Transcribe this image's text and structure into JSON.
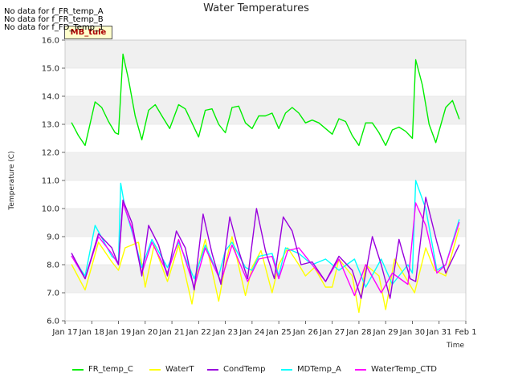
{
  "chart_data": {
    "type": "line",
    "title": "Water Temperatures",
    "xlabel": "Time",
    "ylabel": "Temperature (C)",
    "ylim": [
      6.0,
      16.0
    ],
    "yticks": [
      "6.0",
      "7.0",
      "8.0",
      "9.0",
      "10.0",
      "11.0",
      "12.0",
      "13.0",
      "14.0",
      "15.0",
      "16.0"
    ],
    "xlim": [
      "Jan 17",
      "Feb 1"
    ],
    "xticks": [
      "Jan 17",
      "Jan 18",
      "Jan 19",
      "Jan 20",
      "Jan 21",
      "Jan 22",
      "Jan 23",
      "Jan 24",
      "Jan 25",
      "Jan 26",
      "Jan 27",
      "Jan 28",
      "Jan 29",
      "Jan 30",
      "Jan 31",
      "Feb 1"
    ],
    "grid": "horizontal bands",
    "legend_position": "bottom",
    "series": [
      {
        "name": "FR_temp_C",
        "color": "#00ee00",
        "x": [
          "2025-01-17T06:00",
          "2025-01-17T12:00",
          "2025-01-17T18:00",
          "2025-01-18T03:00",
          "2025-01-18T09:00",
          "2025-01-18T15:00",
          "2025-01-18T21:00",
          "2025-01-19T00:00",
          "2025-01-19T04:00",
          "2025-01-19T09:00",
          "2025-01-19T15:00",
          "2025-01-19T21:00",
          "2025-01-20T03:00",
          "2025-01-20T09:00",
          "2025-01-20T15:00",
          "2025-01-20T22:00",
          "2025-01-21T06:00",
          "2025-01-21T12:00",
          "2025-01-21T18:00",
          "2025-01-22T00:00",
          "2025-01-22T06:00",
          "2025-01-22T12:00",
          "2025-01-22T18:00",
          "2025-01-23T00:00",
          "2025-01-23T06:00",
          "2025-01-23T12:00",
          "2025-01-23T18:00",
          "2025-01-24T00:00",
          "2025-01-24T06:00",
          "2025-01-24T12:00",
          "2025-01-24T18:00",
          "2025-01-25T00:00",
          "2025-01-25T06:00",
          "2025-01-25T12:00",
          "2025-01-25T18:00",
          "2025-01-26T00:00",
          "2025-01-26T06:00",
          "2025-01-26T12:00",
          "2025-01-26T18:00",
          "2025-01-27T00:00",
          "2025-01-27T06:00",
          "2025-01-27T12:00",
          "2025-01-27T18:00",
          "2025-01-28T00:00",
          "2025-01-28T06:00",
          "2025-01-28T12:00",
          "2025-01-28T18:00",
          "2025-01-29T00:00",
          "2025-01-29T06:00",
          "2025-01-29T12:00",
          "2025-01-29T18:00",
          "2025-01-30T00:00",
          "2025-01-30T03:00",
          "2025-01-30T09:00",
          "2025-01-30T15:00",
          "2025-01-30T21:00",
          "2025-01-31T06:00",
          "2025-01-31T12:00",
          "2025-01-31T18:00"
        ],
        "values": [
          13.05,
          12.6,
          12.25,
          13.8,
          13.6,
          13.1,
          12.7,
          12.65,
          15.5,
          14.6,
          13.3,
          12.45,
          13.5,
          13.7,
          13.3,
          12.85,
          13.7,
          13.55,
          13.05,
          12.55,
          13.5,
          13.55,
          13.0,
          12.7,
          13.6,
          13.65,
          13.05,
          12.85,
          13.3,
          13.3,
          13.4,
          12.85,
          13.4,
          13.6,
          13.4,
          13.05,
          13.15,
          13.05,
          12.85,
          12.65,
          13.2,
          13.1,
          12.6,
          12.25,
          13.05,
          13.05,
          12.7,
          12.25,
          12.8,
          12.9,
          12.75,
          12.5,
          15.3,
          14.4,
          13.0,
          12.35,
          13.6,
          13.85,
          13.2
        ],
        "note": "values shown as displayed"
      },
      {
        "name": "WaterT",
        "color": "#ffff00",
        "x": [
          "2025-01-17T06:00",
          "2025-01-17T18:00",
          "2025-01-18T06:00",
          "2025-01-18T18:00",
          "2025-01-19T00:00",
          "2025-01-19T06:00",
          "2025-01-19T18:00",
          "2025-01-20T00:00",
          "2025-01-20T08:00",
          "2025-01-20T20:00",
          "2025-01-21T06:00",
          "2025-01-21T18:00",
          "2025-01-22T00:00",
          "2025-01-22T06:00",
          "2025-01-22T18:00",
          "2025-01-23T00:00",
          "2025-01-23T06:00",
          "2025-01-23T18:00",
          "2025-01-24T00:00",
          "2025-01-24T08:00",
          "2025-01-24T18:00",
          "2025-01-25T00:00",
          "2025-01-25T08:00",
          "2025-01-25T18:00",
          "2025-01-26T00:00",
          "2025-01-26T08:00",
          "2025-01-26T18:00",
          "2025-01-27T00:00",
          "2025-01-27T06:00",
          "2025-01-27T18:00",
          "2025-01-28T00:00",
          "2025-01-28T06:00",
          "2025-01-28T18:00",
          "2025-01-29T00:00",
          "2025-01-29T08:00",
          "2025-01-29T20:00",
          "2025-01-30T02:00",
          "2025-01-30T12:00",
          "2025-01-30T20:00",
          "2025-01-31T06:00",
          "2025-01-31T18:00"
        ],
        "values": [
          8.0,
          7.1,
          8.8,
          8.1,
          7.8,
          8.6,
          8.8,
          7.2,
          8.7,
          7.4,
          8.7,
          6.6,
          8.0,
          8.9,
          6.7,
          8.0,
          9.0,
          6.9,
          7.9,
          8.5,
          7.0,
          8.0,
          8.6,
          8.0,
          7.6,
          7.9,
          7.2,
          7.2,
          8.2,
          7.6,
          6.3,
          8.0,
          7.6,
          6.4,
          8.2,
          7.4,
          7.0,
          8.6,
          7.8,
          7.6,
          9.3
        ]
      },
      {
        "name": "CondTemp",
        "color": "#9900dd",
        "x": [
          "2025-01-17T06:00",
          "2025-01-17T18:00",
          "2025-01-18T06:00",
          "2025-01-18T18:00",
          "2025-01-19T00:00",
          "2025-01-19T04:00",
          "2025-01-19T12:00",
          "2025-01-19T21:00",
          "2025-01-20T03:00",
          "2025-01-20T12:00",
          "2025-01-20T20:00",
          "2025-01-21T04:00",
          "2025-01-21T12:00",
          "2025-01-21T20:00",
          "2025-01-22T04:00",
          "2025-01-22T12:00",
          "2025-01-22T20:00",
          "2025-01-23T04:00",
          "2025-01-23T12:00",
          "2025-01-23T20:00",
          "2025-01-24T04:00",
          "2025-01-24T12:00",
          "2025-01-24T20:00",
          "2025-01-25T04:00",
          "2025-01-25T12:00",
          "2025-01-25T20:00",
          "2025-01-26T06:00",
          "2025-01-26T18:00",
          "2025-01-27T06:00",
          "2025-01-27T18:00",
          "2025-01-28T02:00",
          "2025-01-28T12:00",
          "2025-01-28T20:00",
          "2025-01-29T04:00",
          "2025-01-29T12:00",
          "2025-01-29T22:00",
          "2025-01-30T03:00",
          "2025-01-30T12:00",
          "2025-01-30T22:00",
          "2025-01-31T06:00",
          "2025-01-31T18:00"
        ],
        "values": [
          8.4,
          7.5,
          9.1,
          8.6,
          8.0,
          10.3,
          9.5,
          7.6,
          9.4,
          8.7,
          7.6,
          9.2,
          8.6,
          7.1,
          9.8,
          8.4,
          7.3,
          9.7,
          8.5,
          7.5,
          10.0,
          8.5,
          7.5,
          9.7,
          9.2,
          8.0,
          8.1,
          7.4,
          8.3,
          7.8,
          6.8,
          9.0,
          8.0,
          6.8,
          8.9,
          7.5,
          7.4,
          10.4,
          8.8,
          7.7,
          8.7
        ]
      },
      {
        "name": "MDTemp_A",
        "color": "#00ffff",
        "x": [
          "2025-01-17T06:00",
          "2025-01-17T18:00",
          "2025-01-18T03:00",
          "2025-01-18T18:00",
          "2025-01-19T00:00",
          "2025-01-19T02:00",
          "2025-01-19T06:00",
          "2025-01-19T15:00",
          "2025-01-19T21:00",
          "2025-01-20T06:00",
          "2025-01-20T20:00",
          "2025-01-21T06:00",
          "2025-01-21T20:00",
          "2025-01-22T06:00",
          "2025-01-22T18:00",
          "2025-01-23T00:00",
          "2025-01-23T06:00",
          "2025-01-23T18:00",
          "2025-01-24T00:00",
          "2025-01-24T06:00",
          "2025-01-24T18:00",
          "2025-01-25T00:00",
          "2025-01-25T06:00",
          "2025-01-25T18:00",
          "2025-01-26T06:00",
          "2025-01-26T18:00",
          "2025-01-27T06:00",
          "2025-01-27T20:00",
          "2025-01-28T06:00",
          "2025-01-28T20:00",
          "2025-01-29T06:00",
          "2025-01-29T20:00",
          "2025-01-30T00:00",
          "2025-01-30T03:00",
          "2025-01-30T12:00",
          "2025-01-30T22:00",
          "2025-01-31T06:00",
          "2025-01-31T18:00"
        ],
        "values": [
          8.3,
          7.6,
          9.4,
          8.3,
          8.1,
          10.9,
          10.0,
          8.8,
          7.9,
          8.9,
          7.9,
          8.8,
          7.5,
          8.7,
          7.6,
          8.5,
          8.8,
          7.9,
          7.8,
          8.3,
          8.4,
          7.6,
          8.6,
          8.4,
          8.0,
          8.2,
          7.8,
          8.2,
          7.2,
          8.2,
          7.3,
          8.0,
          7.7,
          11.0,
          10.0,
          7.8,
          8.0,
          9.6
        ]
      },
      {
        "name": "WaterTemp_CTD",
        "color": "#ff00ff",
        "x": [
          "2025-01-17T06:00",
          "2025-01-17T18:00",
          "2025-01-18T06:00",
          "2025-01-18T18:00",
          "2025-01-19T00:00",
          "2025-01-19T04:00",
          "2025-01-19T12:00",
          "2025-01-19T21:00",
          "2025-01-20T06:00",
          "2025-01-20T20:00",
          "2025-01-21T06:00",
          "2025-01-21T20:00",
          "2025-01-22T06:00",
          "2025-01-22T20:00",
          "2025-01-23T06:00",
          "2025-01-23T20:00",
          "2025-01-24T06:00",
          "2025-01-24T18:00",
          "2025-01-25T00:00",
          "2025-01-25T08:00",
          "2025-01-25T18:00",
          "2025-01-26T06:00",
          "2025-01-26T18:00",
          "2025-01-27T06:00",
          "2025-01-27T20:00",
          "2025-01-28T06:00",
          "2025-01-28T20:00",
          "2025-01-29T06:00",
          "2025-01-29T20:00",
          "2025-01-30T03:00",
          "2025-01-30T12:00",
          "2025-01-30T22:00",
          "2025-01-31T06:00",
          "2025-01-31T18:00"
        ],
        "values": [
          8.3,
          7.5,
          9.0,
          8.4,
          8.0,
          10.2,
          9.3,
          7.7,
          8.8,
          7.7,
          8.9,
          7.2,
          8.6,
          7.4,
          8.7,
          7.4,
          8.2,
          8.3,
          7.5,
          8.5,
          8.6,
          8.0,
          7.4,
          8.2,
          6.9,
          8.0,
          7.0,
          7.7,
          7.3,
          10.2,
          9.4,
          7.7,
          8.0,
          9.5
        ]
      }
    ]
  },
  "nodata_messages": [
    "No data for f_FR_temp_A",
    "No data for f_FR_temp_B",
    "No data for f_FD_Temp_1"
  ],
  "badge_label": "MB_tule"
}
